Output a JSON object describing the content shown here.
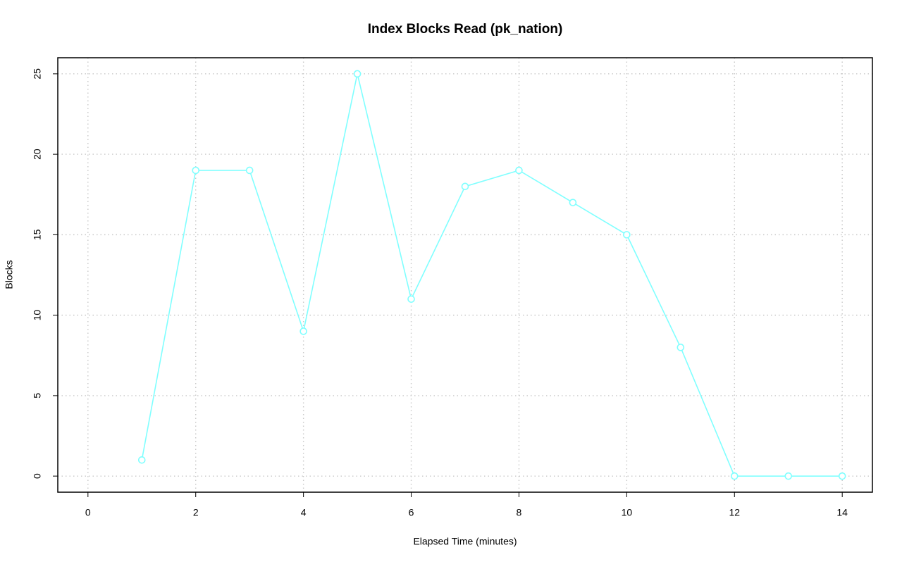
{
  "chart_data": {
    "type": "line",
    "title": "Index Blocks Read (pk_nation)",
    "x_label": "Elapsed Time (minutes)",
    "y_label": "Blocks",
    "x": [
      1,
      2,
      3,
      4,
      5,
      6,
      7,
      8,
      9,
      10,
      11,
      12,
      13,
      14
    ],
    "series": [
      {
        "name": "Blocks",
        "color": "#80ffff",
        "values": [
          1,
          19,
          19,
          9,
          25,
          11,
          18,
          19,
          17,
          15,
          8,
          0,
          0,
          0
        ]
      }
    ],
    "xlim": [
      -0.56,
      14.56
    ],
    "ylim": [
      -1,
      26
    ],
    "xticks": [
      0,
      2,
      4,
      6,
      8,
      10,
      12,
      14
    ],
    "yticks": [
      0,
      5,
      10,
      15,
      20,
      25
    ],
    "grid": true
  }
}
